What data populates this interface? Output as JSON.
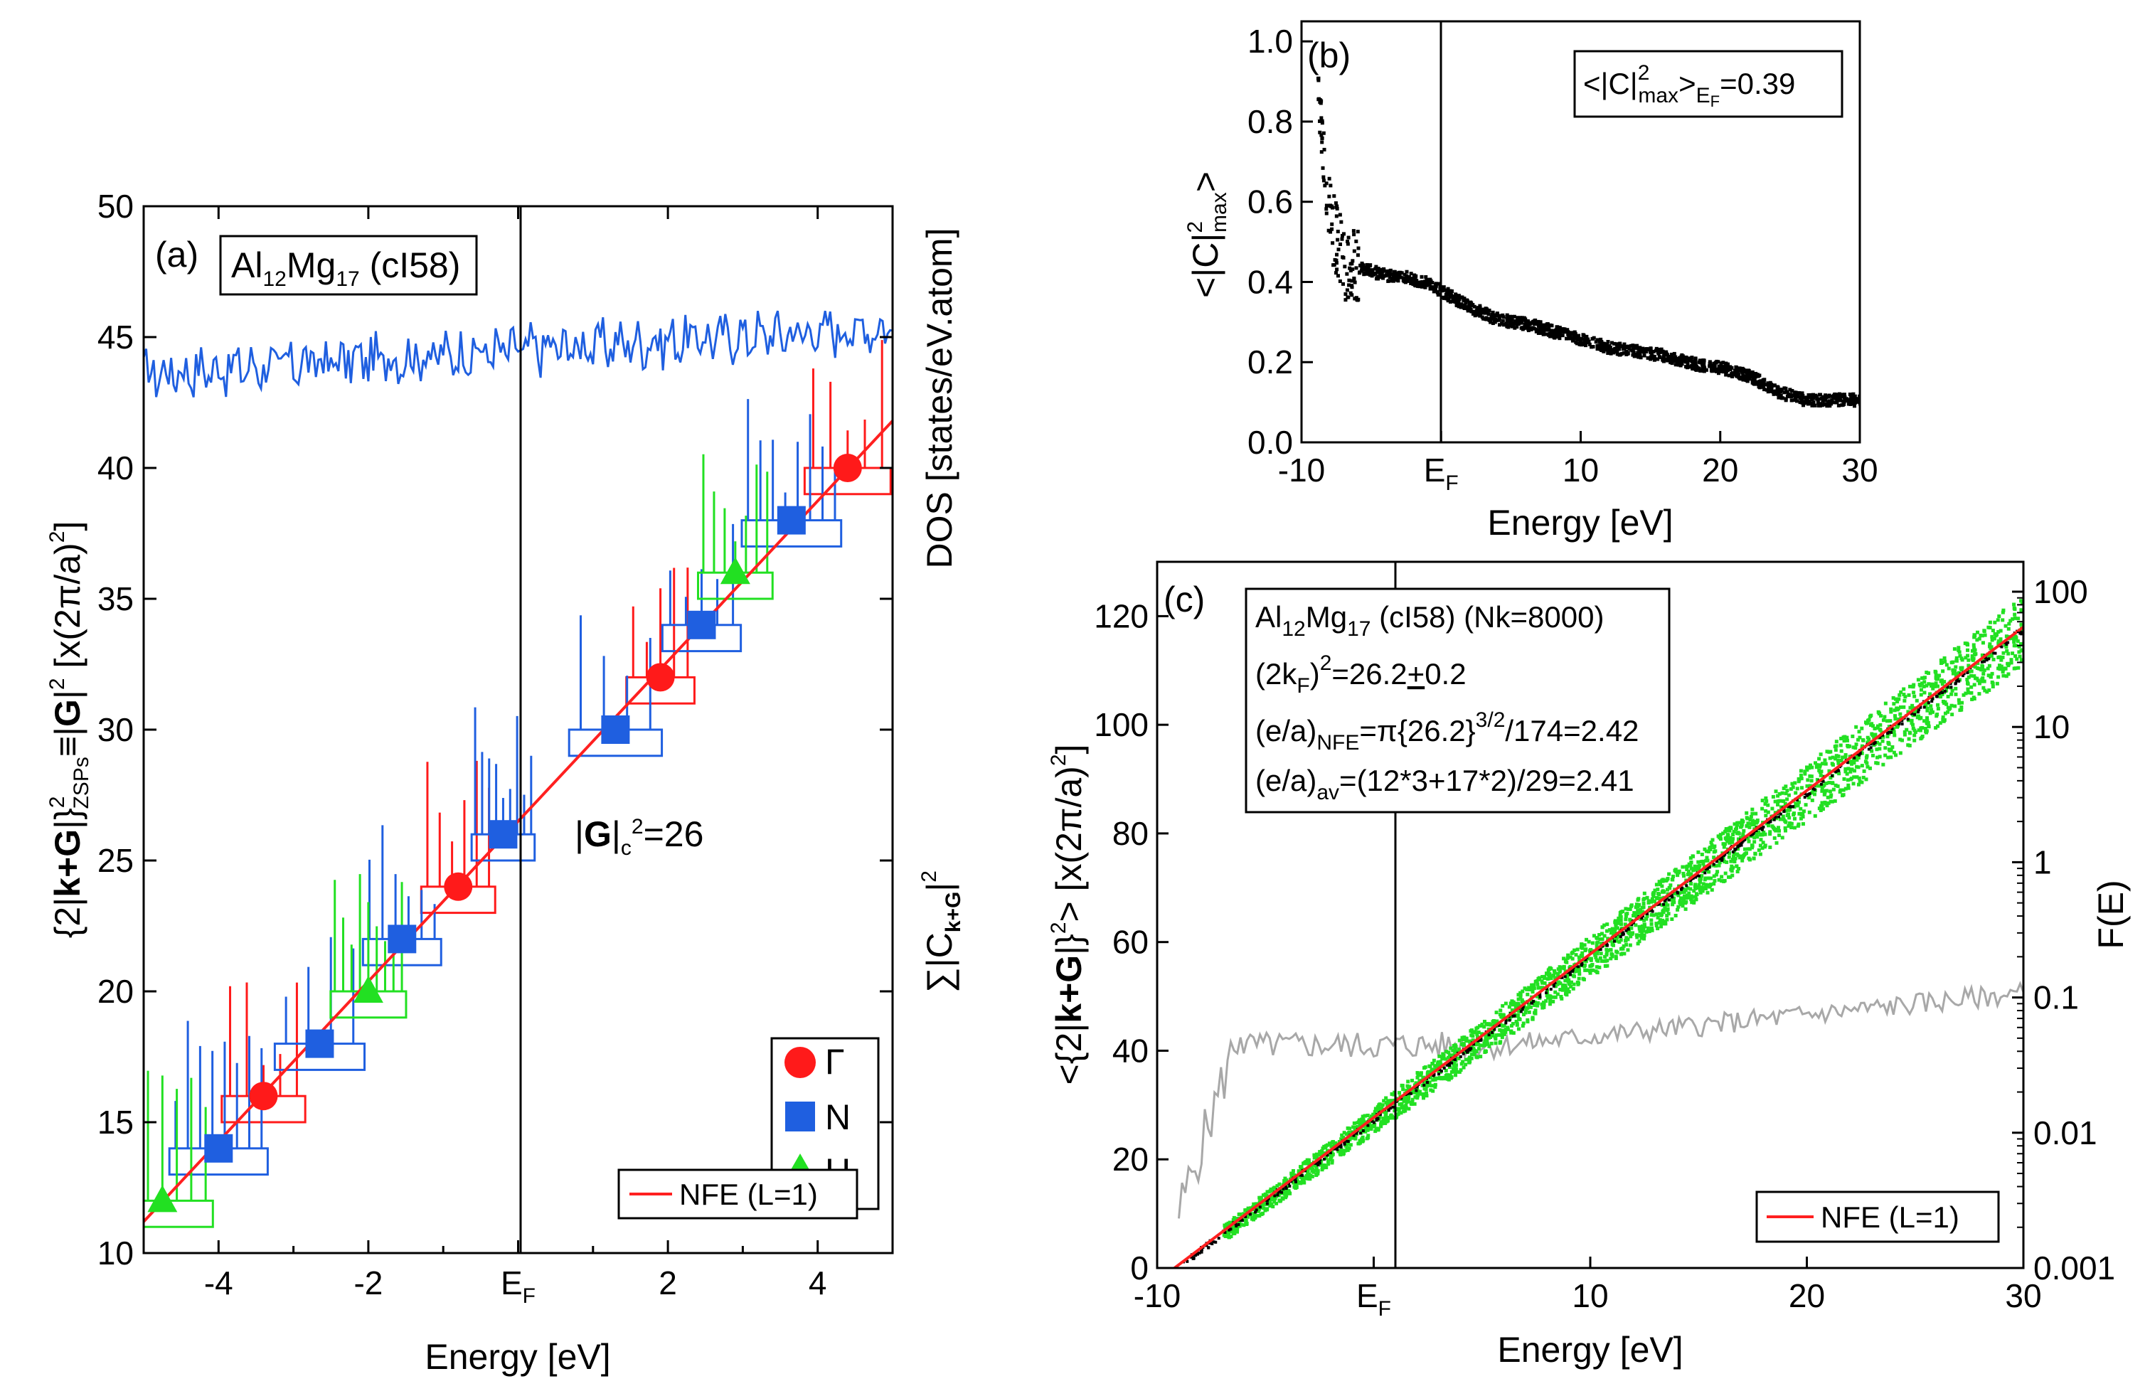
{
  "chart_data": [
    {
      "panel": "(a)",
      "type": "line",
      "title_box": {
        "main": "Al",
        "sub1": "12",
        "mid": "Mg",
        "sub2": "17",
        "tail": " (cI58)"
      },
      "xlabel": "Energy [eV]",
      "ylabel_left": {
        "p1": "{2|",
        "bold1": "k+G",
        "p2": "|}",
        "sup1": "2",
        "sub1": "ZSPs",
        "p3": "≡|",
        "bold2": "G",
        "p4": "|",
        "sup2": "2",
        "p5": " [x(2π/a)",
        "sup3": "2",
        "p6": "]"
      },
      "ylabel_right_top": "DOS [states/eV.atom]",
      "ylabel_right_bottom": {
        "p1": "∑|C",
        "sub": "k+G",
        "p2": "|",
        "sup": "2"
      },
      "xlim": [
        -5,
        5
      ],
      "ylim": [
        10,
        50
      ],
      "xticks": [
        -4,
        -2,
        0,
        2,
        4
      ],
      "xtick_labels": [
        "-4",
        "-2",
        "E",
        "2",
        "4"
      ],
      "ef_sub": "F",
      "yticks": [
        10,
        15,
        20,
        25,
        30,
        35,
        40,
        45,
        50
      ],
      "ytick_labels": [
        "10",
        "15",
        "20",
        "25",
        "30",
        "35",
        "40",
        "45",
        "50"
      ],
      "gc_annotation": {
        "p1": "|",
        "bold": "G",
        "p2": "|",
        "sub": "c",
        "sup": "2",
        "p3": "=26"
      },
      "nfe_line": {
        "label": "NFE (L=1)",
        "color": "#ff2020",
        "x": [
          -5,
          5
        ],
        "y": [
          11.2,
          41.8
        ]
      },
      "dos_curve": {
        "color": "#1f5fe0",
        "y_range": [
          42,
          46
        ]
      },
      "points": [
        {
          "label": "Γ",
          "color": "#ff1a1a",
          "marker": "circle",
          "x": [
            -3.4,
            -0.8,
            1.9,
            4.4
          ],
          "y": [
            16,
            24,
            32,
            40
          ]
        },
        {
          "label": "N",
          "color": "#1f5fe0",
          "marker": "square",
          "x": [
            -4.0,
            -2.65,
            -1.55,
            -0.2,
            1.3,
            2.45,
            3.65
          ],
          "y": [
            14,
            18,
            22,
            26,
            30,
            34,
            38
          ]
        },
        {
          "label": "H",
          "color": "#22e022",
          "marker": "triangle",
          "x": [
            -4.75,
            -2.0,
            2.9
          ],
          "y": [
            12,
            20,
            36
          ]
        }
      ],
      "legend": [
        "Γ",
        "N",
        "H"
      ]
    },
    {
      "panel": "(b)",
      "type": "scatter",
      "xlabel": "Energy [eV]",
      "ylabel": {
        "p1": "<|C|",
        "sup": "2",
        "sub": "max",
        "p2": ">"
      },
      "annotation": {
        "p1": "<|C|",
        "sup": "2",
        "sub": "max",
        "p2": ">",
        "sub2": "E",
        "sub3": "F",
        "p3": "=0.39"
      },
      "xlim": [
        -10,
        30
      ],
      "ylim": [
        0,
        1.05
      ],
      "xticks": [
        -10,
        0,
        10,
        20,
        30
      ],
      "xtick_labels": [
        "-10",
        "E",
        "10",
        "20",
        "30"
      ],
      "ef_sub": "F",
      "yticks": [
        0.0,
        0.2,
        0.4,
        0.6,
        0.8,
        1.0
      ],
      "ytick_labels": [
        "0.0",
        "0.2",
        "0.4",
        "0.6",
        "0.8",
        "1.0"
      ],
      "series": [
        {
          "name": "<|C|²max>",
          "color": "#000000",
          "x": [
            -9,
            -8.5,
            -8,
            -7,
            -6,
            -5,
            -4,
            -3,
            -2,
            -1,
            0,
            2,
            4,
            6,
            8,
            10,
            12,
            14,
            16,
            18,
            20,
            22,
            24,
            26,
            28,
            30
          ],
          "y": [
            0.9,
            0.7,
            0.55,
            0.45,
            0.44,
            0.43,
            0.42,
            0.42,
            0.41,
            0.4,
            0.38,
            0.34,
            0.31,
            0.3,
            0.28,
            0.26,
            0.24,
            0.23,
            0.22,
            0.2,
            0.19,
            0.17,
            0.13,
            0.11,
            0.11,
            0.11
          ]
        }
      ]
    },
    {
      "panel": "(c)",
      "type": "scatter",
      "xlabel": "Energy [eV]",
      "ylabel_left": {
        "p1": "<{2|",
        "bold": "k+G",
        "p2": "|}",
        "sup1": "2",
        "p3": "> [x(2π/a)",
        "sup2": "2",
        "p4": "]"
      },
      "ylabel_right": "F(E)",
      "xlim": [
        -10,
        30
      ],
      "ylim": [
        0,
        130
      ],
      "xticks": [
        -10,
        0,
        10,
        20,
        30
      ],
      "xtick_labels": [
        "-10",
        "E",
        "10",
        "20",
        "30"
      ],
      "ef_sub": "F",
      "yticks": [
        0,
        20,
        40,
        60,
        80,
        100,
        120
      ],
      "ytick_labels": [
        "0",
        "20",
        "40",
        "60",
        "80",
        "100",
        "120"
      ],
      "right_axis": {
        "scale": "log",
        "ticks": [
          "100",
          "10",
          "1",
          "0.1",
          "0.01",
          "0.001"
        ]
      },
      "text_box": {
        "l1": {
          "a": "Al",
          "s1": "12",
          "b": "Mg",
          "s2": "17",
          "c": " (cI58) (Nk=8000)"
        },
        "l2": {
          "a": "(2k",
          "s1": "F",
          "b": ")",
          "sup": "2",
          "c": "=26.2",
          "d": "+",
          "e": "0.2"
        },
        "l3": {
          "a": "(e/a)",
          "s1": "NFE",
          "b": "=π{26.2}",
          "sup": "3/2",
          "c": "/174=2.42"
        },
        "l4": {
          "a": "(e/a)",
          "s1": "av",
          "b": "=(12*3+17*2)/29=2.41"
        }
      },
      "nfe_line": {
        "label": "NFE (L=1)",
        "color": "#ff2020",
        "x": [
          -9.2,
          30
        ],
        "y": [
          0,
          118
        ]
      },
      "scatter_color": "#22e022",
      "fe_curve": {
        "color": "#a8a8a8"
      }
    }
  ]
}
